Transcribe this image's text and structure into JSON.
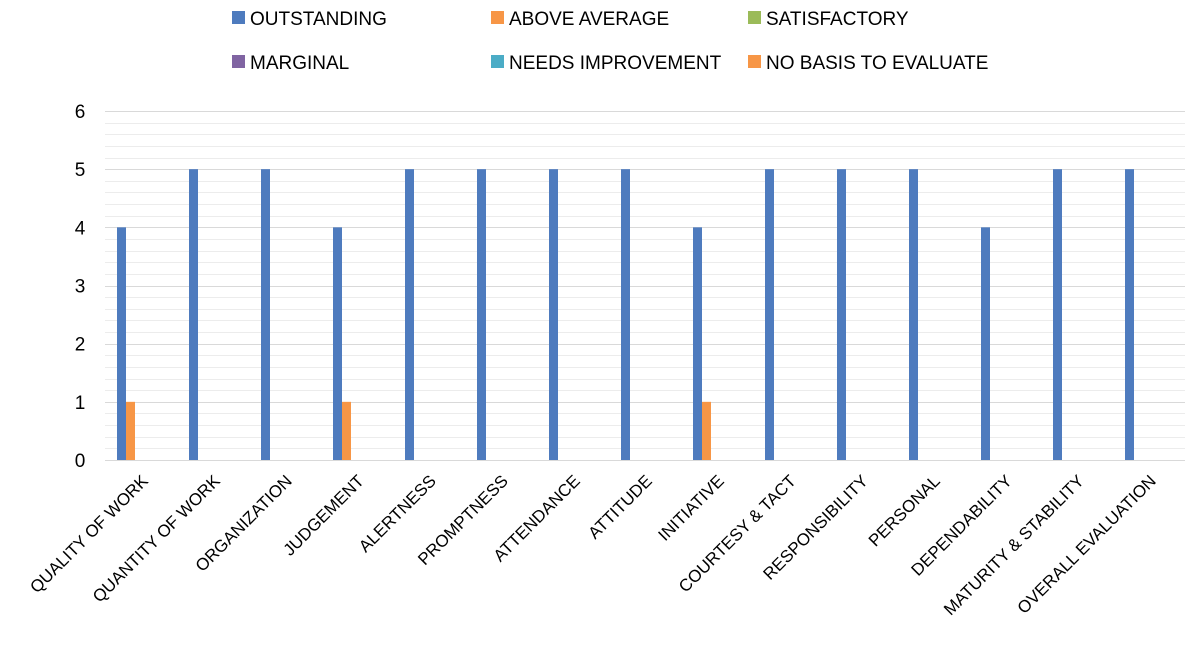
{
  "chart_data": {
    "type": "bar",
    "title": "",
    "xlabel": "",
    "ylabel": "",
    "ylim": [
      0,
      6
    ],
    "yticks": [
      0,
      1,
      2,
      3,
      4,
      5,
      6
    ],
    "grid": true,
    "legend_position": "top",
    "categories": [
      "QUALITY OF WORK",
      "QUANTITY OF WORK",
      "ORGANIZATION",
      "JUDGEMENT",
      "ALERTNESS",
      "PROMPTNESS",
      "ATTENDANCE",
      "ATTITUDE",
      "INITIATIVE",
      "COURTESY & TACT",
      "RESPONSIBILITY",
      "PERSONAL",
      "DEPENDABILITY",
      "MATURITY & STABILITY",
      "OVERALL EVALUATION"
    ],
    "series": [
      {
        "name": "OUTSTANDING",
        "color": "#4E7BBE",
        "values": [
          4,
          5,
          5,
          4,
          5,
          5,
          5,
          5,
          4,
          5,
          5,
          5,
          4,
          5,
          5
        ]
      },
      {
        "name": "ABOVE AVERAGE",
        "color": "#F79646",
        "values": [
          1,
          0,
          0,
          1,
          0,
          0,
          0,
          0,
          1,
          0,
          0,
          0,
          0,
          0,
          0
        ]
      },
      {
        "name": "SATISFACTORY",
        "color": "#9BBB59",
        "values": [
          0,
          0,
          0,
          0,
          0,
          0,
          0,
          0,
          0,
          0,
          0,
          0,
          0,
          0,
          0
        ]
      },
      {
        "name": "MARGINAL",
        "color": "#8064A2",
        "values": [
          0,
          0,
          0,
          0,
          0,
          0,
          0,
          0,
          0,
          0,
          0,
          0,
          0,
          0,
          0
        ]
      },
      {
        "name": "NEEDS IMPROVEMENT",
        "color": "#4BACC6",
        "values": [
          0,
          0,
          0,
          0,
          0,
          0,
          0,
          0,
          0,
          0,
          0,
          0,
          0,
          0,
          0
        ]
      },
      {
        "name": "NO BASIS TO EVALUATE",
        "color": "#F79646",
        "values": [
          0,
          0,
          0,
          0,
          0,
          0,
          0,
          0,
          0,
          0,
          0,
          0,
          0,
          0,
          0
        ]
      }
    ]
  }
}
